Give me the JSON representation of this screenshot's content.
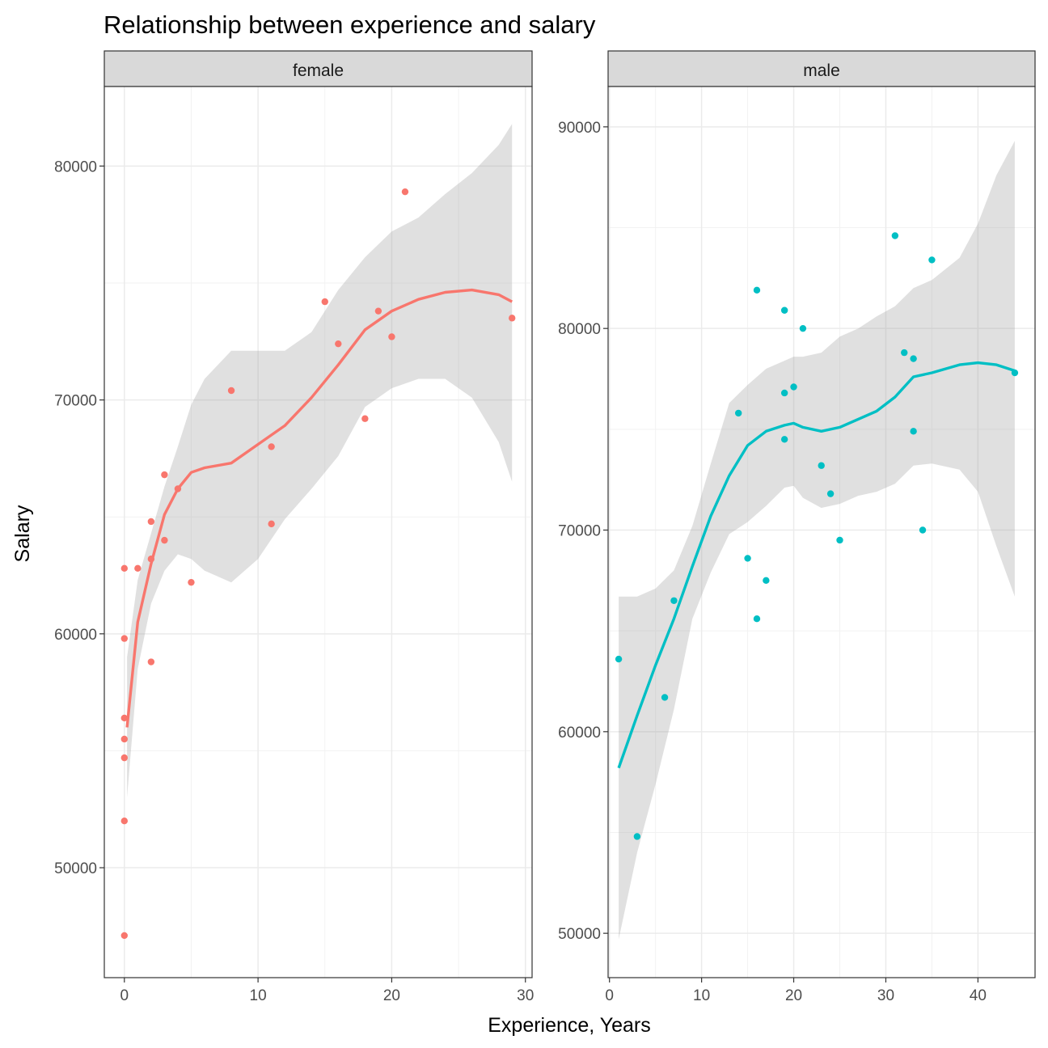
{
  "chart_data": {
    "type": "scatter",
    "title": "Relationship between experience and salary",
    "xlabel": "Experience, Years",
    "ylabel": "Salary",
    "grid": true,
    "facets": [
      {
        "label": "female",
        "color": "#f8766d",
        "xlim": [
          -1.5,
          30.5
        ],
        "ylim": [
          45300,
          83400
        ],
        "xticks": [
          0,
          10,
          20,
          30
        ],
        "yticks": [
          50000,
          60000,
          70000,
          80000
        ],
        "x": [
          0,
          0,
          0,
          0,
          0,
          0,
          0,
          1,
          2,
          2,
          2,
          3,
          3,
          4,
          5,
          8,
          11,
          11,
          15,
          16,
          18,
          19,
          20,
          21,
          29
        ],
        "y": [
          62800,
          59800,
          56400,
          55500,
          54700,
          52000,
          47100,
          62800,
          64800,
          63200,
          58800,
          64000,
          66800,
          66200,
          62200,
          70400,
          68000,
          64700,
          74200,
          72400,
          69200,
          73800,
          72700,
          78900,
          73500
        ],
        "smooth": {
          "x": [
            0.2,
            1,
            2,
            3,
            4,
            5,
            6,
            8,
            10,
            12,
            14,
            16,
            18,
            20,
            22,
            24,
            26,
            28,
            29
          ],
          "y": [
            56000,
            60500,
            63000,
            65100,
            66200,
            66900,
            67100,
            67300,
            68100,
            68900,
            70100,
            71500,
            73000,
            73800,
            74300,
            74600,
            74700,
            74500,
            74200
          ],
          "upper": [
            59000,
            62300,
            64300,
            66300,
            68000,
            69800,
            70900,
            72100,
            72100,
            72100,
            72900,
            74700,
            76100,
            77200,
            77800,
            78800,
            79700,
            80900,
            81800
          ],
          "lower": [
            53000,
            58500,
            61300,
            62700,
            63400,
            63200,
            62700,
            62200,
            63200,
            64900,
            66200,
            67600,
            69700,
            70500,
            70900,
            70900,
            70100,
            68200,
            66500
          ]
        }
      },
      {
        "label": "male",
        "color": "#00bfc4",
        "xlim": [
          -0.15,
          46.2
        ],
        "ylim": [
          47800,
          92000
        ],
        "xticks": [
          0,
          10,
          20,
          30,
          40
        ],
        "yticks": [
          50000,
          60000,
          70000,
          80000,
          90000
        ],
        "x": [
          1,
          3,
          6,
          7,
          14,
          15,
          16,
          16,
          17,
          19,
          19,
          19,
          20,
          21,
          23,
          24,
          25,
          31,
          32,
          33,
          33,
          34,
          35,
          44
        ],
        "y": [
          63600,
          54800,
          61700,
          66500,
          75800,
          68600,
          65600,
          81900,
          67500,
          80900,
          76800,
          74500,
          77100,
          80000,
          73200,
          71800,
          69500,
          84600,
          78800,
          78500,
          74900,
          70000,
          83400,
          77800
        ],
        "smooth": {
          "x": [
            1,
            3,
            5,
            7,
            9,
            11,
            13,
            15,
            17,
            19,
            20,
            21,
            23,
            25,
            27,
            29,
            31,
            33,
            35,
            38,
            40,
            42,
            44
          ],
          "y": [
            58200,
            60800,
            63300,
            65600,
            68200,
            70700,
            72700,
            74200,
            74900,
            75200,
            75300,
            75100,
            74900,
            75100,
            75500,
            75900,
            76600,
            77600,
            77800,
            78200,
            78300,
            78200,
            77900
          ],
          "upper": [
            66700,
            66700,
            67100,
            68000,
            70200,
            73300,
            76300,
            77200,
            78000,
            78400,
            78600,
            78600,
            78800,
            79600,
            80000,
            80600,
            81100,
            82000,
            82400,
            83500,
            85200,
            87600,
            89300
          ],
          "lower": [
            49700,
            54000,
            57400,
            61100,
            65600,
            67900,
            69800,
            70400,
            71200,
            72100,
            72200,
            71600,
            71100,
            71300,
            71700,
            71900,
            72300,
            73200,
            73300,
            73000,
            71900,
            69200,
            66700
          ]
        }
      }
    ]
  }
}
